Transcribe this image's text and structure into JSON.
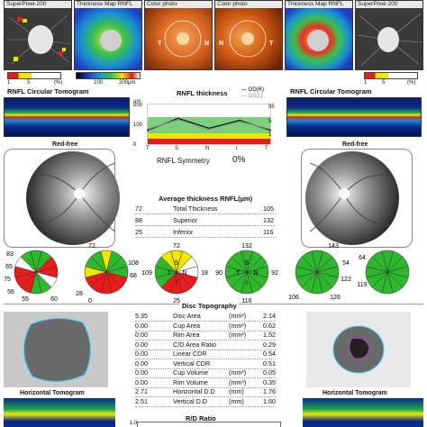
{
  "thumbs": {
    "t1": "SuperPixel-200",
    "t2": "Thickness Map RNFL",
    "t3": "Color photo",
    "t4": "Color photo",
    "t5": "Thickness Map RNFL",
    "t6": "SuperPixel-200"
  },
  "scale_left": {
    "v1": "1",
    "v2": "5",
    "pct": "(%)"
  },
  "scale_mid": {
    "v1": "100",
    "v2": "200µm"
  },
  "scale_right": {
    "v1": "1",
    "v2": "5",
    "pct": "(%)"
  },
  "photo_letters": {
    "left_t": "T",
    "left_n": "N",
    "right_n": "N",
    "right_t": "T"
  },
  "tomo": {
    "left_title": "RNFL Circular Tomogram",
    "right_title": "RNFL Circular Tomogram"
  },
  "rnfl_chart": {
    "title": "RNFL thickness",
    "legend_od": "OD(R)",
    "legend_os": "OS(L)",
    "y_unit": "µm",
    "y_ticks": [
      "200",
      "100",
      "0"
    ],
    "x_ticks": [
      "T",
      "S",
      "N",
      "I",
      "T"
    ],
    "side_ticks": [
      "95",
      "5",
      "1"
    ],
    "symmetry_label": "RNFL Symmetry",
    "symmetry_value": "0%"
  },
  "chart_data": {
    "type": "line",
    "title": "RNFL thickness",
    "xlabel": "",
    "ylabel": "µm",
    "categories": [
      "T",
      "S",
      "N",
      "I",
      "T"
    ],
    "ylim": [
      0,
      200
    ],
    "series": [
      {
        "name": "OD(R)",
        "values": [
          70,
          130,
          80,
          120,
          70
        ]
      },
      {
        "name": "OS(L)",
        "values": [
          75,
          125,
          75,
          115,
          75
        ]
      }
    ]
  },
  "redfree": {
    "left": "Red-free",
    "right": "Red-free"
  },
  "avg_table": {
    "title": "Average thickness RNFL(µm)",
    "rows": [
      {
        "left": "72",
        "label": "Total Thickness",
        "right": "105"
      },
      {
        "left": "88",
        "label": "Superior",
        "right": "132"
      },
      {
        "left": "25",
        "label": "Inferior",
        "right": "116"
      }
    ]
  },
  "quadrant_left": {
    "s": "S",
    "t": "T",
    "n": "N",
    "i": "I",
    "top": "72",
    "left": "109",
    "right": "18",
    "bottom": "25"
  },
  "quadrant_right": {
    "s": "S",
    "t": "T",
    "n": "N",
    "i": "I",
    "top": "132",
    "left": "90",
    "right": "92",
    "bottom": "116"
  },
  "clock_left_labels": [
    "83",
    "65",
    "75",
    "56",
    "55",
    "60"
  ],
  "clock_left_mid_labels": [
    "72",
    "108",
    "68",
    "0",
    "28",
    "25"
  ],
  "clock_right_mid_labels": [
    "143",
    "54",
    "106",
    "126"
  ],
  "clock_right_labels": [
    "64",
    "119",
    "122"
  ],
  "disc": {
    "title": "Disc Topography",
    "unit_col": "",
    "rows": [
      {
        "left": "5.35",
        "label": "Disc Area",
        "unit": "(mm²)",
        "right": "2.14"
      },
      {
        "left": "0.00",
        "label": "Cup Area",
        "unit": "(mm²)",
        "right": "0.62"
      },
      {
        "left": "0.00",
        "label": "Rim Area",
        "unit": "(mm²)",
        "right": "1.52"
      },
      {
        "left": "0.00",
        "label": "C/D Area Ratio",
        "unit": "",
        "right": "0.29"
      },
      {
        "left": "0.00",
        "label": "Linear CDR",
        "unit": "",
        "right": "0.54"
      },
      {
        "left": "0.00",
        "label": "Vertical CDR",
        "unit": "",
        "right": "0.51"
      },
      {
        "left": "0.00",
        "label": "Cup Volume",
        "unit": "(mm³)",
        "right": "0.05"
      },
      {
        "left": "0.00",
        "label": "Rim Volume",
        "unit": "(mm³)",
        "right": "0.35"
      },
      {
        "left": "2.71",
        "label": "Horizontal D.D",
        "unit": "(mm)",
        "right": "1.76"
      },
      {
        "left": "2.51",
        "label": "Vertical D.D",
        "unit": "(mm)",
        "right": "1.60"
      }
    ]
  },
  "horiz": {
    "left": "Horizontal Tomogram",
    "right": "Horizontal Tomogram"
  },
  "rd_ratio": {
    "title": "R/D Ratio",
    "y_top": "1.0"
  },
  "colors": {
    "green": "#2eb82e",
    "yellow": "#f2e600",
    "red": "#e81c1c",
    "tomo_blue": "#0b2a8a"
  }
}
